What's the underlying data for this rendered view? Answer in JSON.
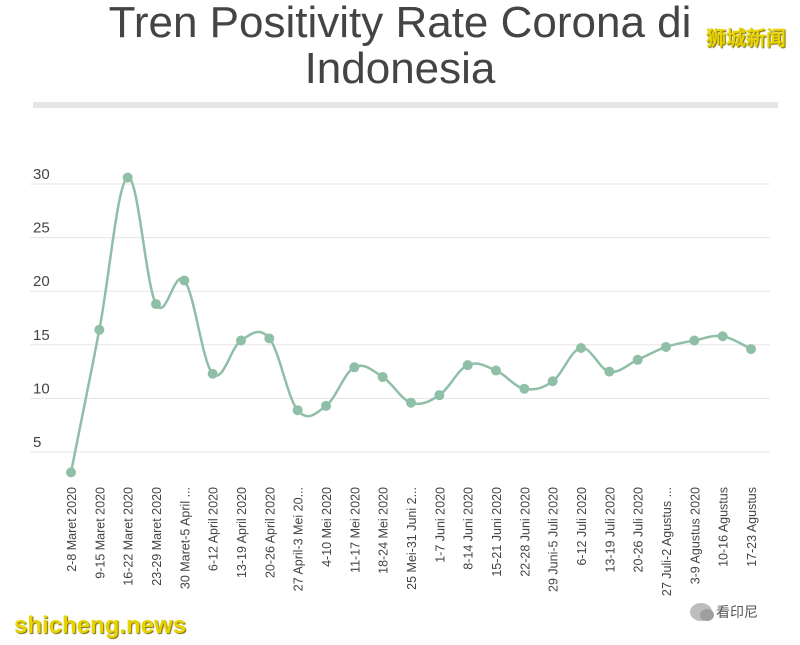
{
  "title_line1": "Tren Positivity Rate Corona di",
  "title_line2": "Indonesia",
  "watermarks": {
    "top_right": "狮城新闻",
    "bottom_left": "shicheng.news",
    "bottom_right": "看印尼",
    "wechat_icon": "wechat-icon"
  },
  "colors": {
    "line": "#8fbfa6",
    "grid": "#e5e5e5",
    "text": "#444444"
  },
  "chart_data": {
    "type": "line",
    "title": "Tren Positivity Rate Corona di Indonesia",
    "xlabel": "",
    "ylabel": "",
    "ylim": [
      0,
      32
    ],
    "yticks": [
      5,
      10,
      15,
      20,
      25,
      30
    ],
    "grid": true,
    "categories": [
      "2-8 Maret 2020",
      "9-15 Maret 2020",
      "16-22 Maret 2020",
      "23-29 Maret 2020",
      "30 Maret-5 April ...",
      "6-12 April 2020",
      "13-19 April 2020",
      "20-26 April 2020",
      "27 April-3 Mei 20...",
      "4-10 Mei 2020",
      "11-17 Mei 2020",
      "18-24 Mei 2020",
      "25 Mei-31 Juni 2...",
      "1-7 Juni 2020",
      "8-14 Juni 2020",
      "15-21 Juni 2020",
      "22-28 Juni 2020",
      "29 Juni-5 Juli 2020",
      "6-12 Juli 2020",
      "13-19 Juli 2020",
      "20-26 Juli 2020",
      "27 Juli-2 Agustus ...",
      "3-9 Agustus 2020",
      "10-16 Agustus",
      "17-23 Agustus"
    ],
    "series": [
      {
        "name": "Positivity Rate",
        "values": [
          3.1,
          16.4,
          30.6,
          18.8,
          21.0,
          12.3,
          15.4,
          15.6,
          8.9,
          9.3,
          12.9,
          12.0,
          9.6,
          10.3,
          13.1,
          12.6,
          10.9,
          11.6,
          14.7,
          12.5,
          13.6,
          14.8,
          15.4,
          15.8,
          14.6
        ]
      }
    ]
  }
}
